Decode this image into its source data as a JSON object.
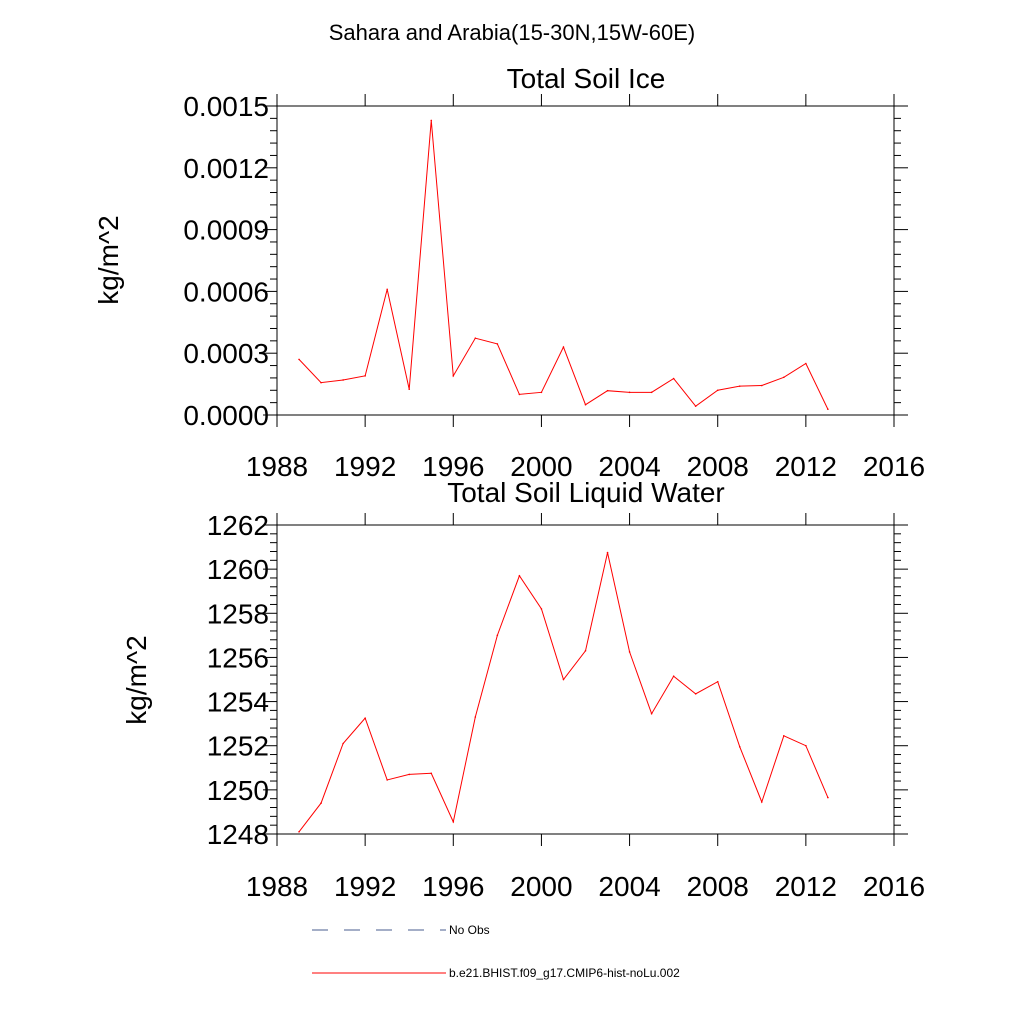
{
  "figure": {
    "title": "Sahara and Arabia(15-30N,15W-60E)"
  },
  "chart_data": [
    {
      "type": "line",
      "title": "Total Soil Ice",
      "ylabel": "kg/m^2",
      "xlabel": "",
      "xlim": [
        1988,
        2016
      ],
      "ylim": [
        0,
        0.0015
      ],
      "xticks": [
        "1988",
        "1992",
        "1996",
        "2000",
        "2004",
        "2008",
        "2012",
        "2016"
      ],
      "yticks": [
        "0.0000",
        "0.0003",
        "0.0006",
        "0.0009",
        "0.0012",
        "0.0015"
      ],
      "x": [
        1989,
        1990,
        1991,
        1992,
        1993,
        1994,
        1995,
        1996,
        1997,
        1998,
        1999,
        2000,
        2001,
        2002,
        2003,
        2004,
        2005,
        2006,
        2007,
        2008,
        2009,
        2010,
        2011,
        2012,
        2013
      ],
      "series": [
        {
          "name": "b.e21.BHIST.f09_g17.CMIP6-hist-noLu.002",
          "color": "#ff0000",
          "values": [
            0.00027,
            0.000157,
            0.00017,
            0.00019,
            0.00061,
            0.000125,
            0.00143,
            0.00019,
            0.000373,
            0.000345,
            0.0001,
            0.00011,
            0.00033,
            5e-05,
            0.000118,
            0.00011,
            0.00011,
            0.000177,
            4.3e-05,
            0.00012,
            0.00014,
            0.000143,
            0.000183,
            0.00025,
            2.8e-05
          ]
        }
      ],
      "grid": false
    },
    {
      "type": "line",
      "title": "Total Soil Liquid Water",
      "ylabel": "kg/m^2",
      "xlabel": "",
      "xlim": [
        1988,
        2016
      ],
      "ylim": [
        1248,
        1262
      ],
      "xticks": [
        "1988",
        "1992",
        "1996",
        "2000",
        "2004",
        "2008",
        "2012",
        "2016"
      ],
      "yticks": [
        "1248",
        "1250",
        "1252",
        "1254",
        "1256",
        "1258",
        "1260",
        "1262"
      ],
      "x": [
        1989,
        1990,
        1991,
        1992,
        1993,
        1994,
        1995,
        1996,
        1997,
        1998,
        1999,
        2000,
        2001,
        2002,
        2003,
        2004,
        2005,
        2006,
        2007,
        2008,
        2009,
        2010,
        2011,
        2012,
        2013
      ],
      "series": [
        {
          "name": "b.e21.BHIST.f09_g17.CMIP6-hist-noLu.002",
          "color": "#ff0000",
          "values": [
            1248.1,
            1249.4,
            1252.1,
            1253.25,
            1250.45,
            1250.7,
            1250.75,
            1248.55,
            1253.3,
            1257.0,
            1259.7,
            1258.2,
            1255.0,
            1256.3,
            1260.75,
            1256.25,
            1253.45,
            1255.15,
            1254.35,
            1254.9,
            1251.95,
            1249.45,
            1252.45,
            1252.0,
            1249.65
          ]
        }
      ],
      "grid": false
    }
  ],
  "legend": {
    "entries": [
      {
        "label": "No Obs",
        "color": "#4a5c8f",
        "dash": true
      },
      {
        "label": "b.e21.BHIST.f09_g17.CMIP6-hist-noLu.002",
        "color": "#ff0000",
        "dash": false
      }
    ]
  }
}
